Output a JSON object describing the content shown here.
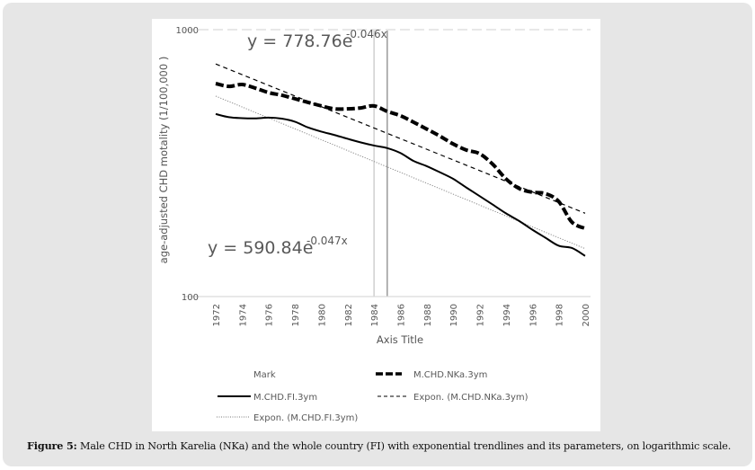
{
  "figure": {
    "caption_label": "Figure 5:",
    "caption_text": " Male CHD in North Karelia (NKa) and the whole country (FI) with exponential trendlines and its parameters, on logarithmic scale."
  },
  "chart_data": {
    "type": "line",
    "title": "",
    "xlabel": "Axis Title",
    "ylabel": "age-adjusted CHD motality (1/100,000 )",
    "yscale": "log",
    "ylim": [
      100,
      1000
    ],
    "yticks": [
      "100",
      "1000"
    ],
    "xlim": [
      1972,
      2000
    ],
    "xticks": [
      "1972",
      "1974",
      "1976",
      "1978",
      "1980",
      "1982",
      "1984",
      "1986",
      "1988",
      "1990",
      "1992",
      "1994",
      "1996",
      "1998",
      "2000"
    ],
    "grid": "horizontal dashed at 1000",
    "x": [
      1972,
      1973,
      1974,
      1975,
      1976,
      1977,
      1978,
      1979,
      1980,
      1981,
      1982,
      1983,
      1984,
      1985,
      1986,
      1987,
      1988,
      1989,
      1990,
      1991,
      1992,
      1993,
      1994,
      1995,
      1996,
      1997,
      1998,
      1999,
      2000
    ],
    "series": [
      {
        "name": "M.CHD.NKa.3ym",
        "style": "thick-dashed",
        "values": [
          628,
          613,
          623,
          604,
          581,
          568,
          551,
          534,
          518,
          505,
          505,
          509,
          518,
          494,
          476,
          450,
          424,
          399,
          373,
          354,
          343,
          313,
          276,
          254,
          246,
          243,
          227,
          190,
          180
        ]
      },
      {
        "name": "M.CHD.FI.3ym",
        "style": "solid",
        "values": [
          483,
          470,
          466,
          465,
          468,
          464,
          452,
          430,
          415,
          403,
          390,
          378,
          368,
          360,
          345,
          322,
          308,
          292,
          276,
          256,
          238,
          221,
          205,
          192,
          178,
          166,
          155,
          152,
          142
        ]
      },
      {
        "name": "Expon. (M.CHD.NKa.3ym)",
        "style": "dashed",
        "trend": {
          "a": 778.76,
          "b": -0.046
        }
      },
      {
        "name": "Expon. (M.CHD.FI.3ym)",
        "style": "dotted",
        "trend": {
          "a": 590.84,
          "b": -0.047
        }
      }
    ],
    "marks": [
      {
        "name": "Mark",
        "x": 1984,
        "color": "#cfcfcf"
      },
      {
        "name": "Mark",
        "x": 1985,
        "color": "#9a9a9a"
      }
    ],
    "annotations": [
      {
        "id": "eq_nka",
        "base": "y = 778.76e",
        "exponent": "-0.046x"
      },
      {
        "id": "eq_fi",
        "base": "y = 590.84e",
        "exponent": "-0.047x"
      }
    ],
    "legend": {
      "placement": "bottom",
      "entries": [
        {
          "label": "Mark",
          "style": "none"
        },
        {
          "label": "M.CHD.NKa.3ym",
          "style": "thick-dashed"
        },
        {
          "label": "M.CHD.FI.3ym",
          "style": "solid"
        },
        {
          "label": "Expon. (M.CHD.NKa.3ym)",
          "style": "dashed"
        },
        {
          "label": "Expon. (M.CHD.FI.3ym)",
          "style": "dotted"
        }
      ]
    }
  }
}
